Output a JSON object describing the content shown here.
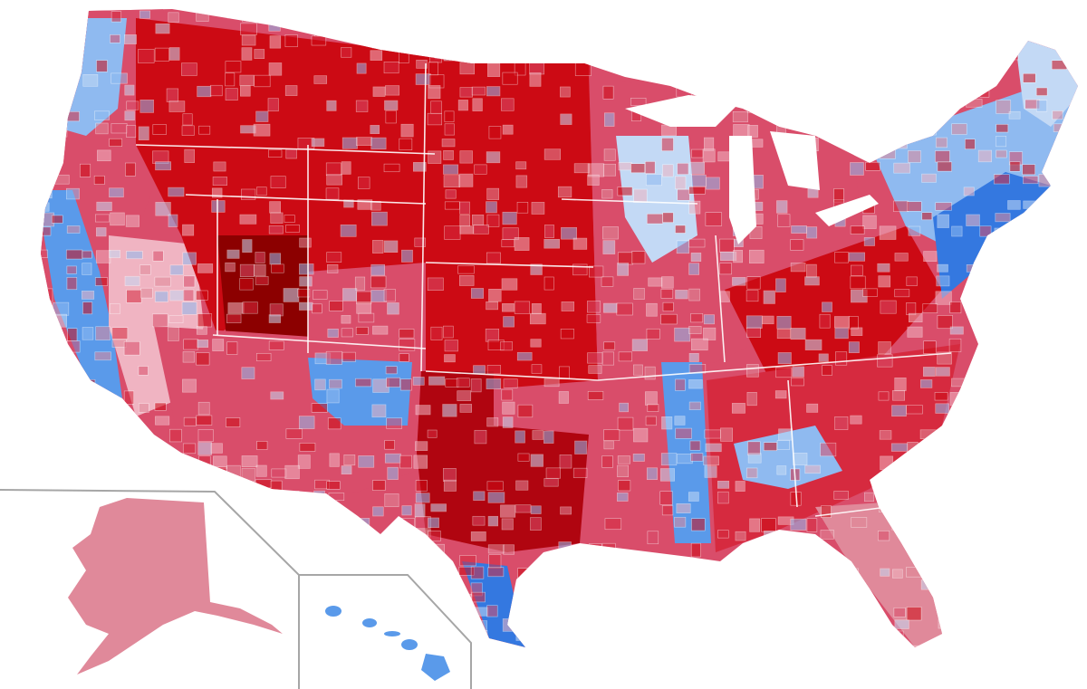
{
  "map": {
    "legend_colors": {
      "r_very_strong": "#8c0000",
      "r_strong": "#cc0a14",
      "r_solid": "#d62a3f",
      "r_medium": "#d94d6a",
      "r_lean": "#e0899a",
      "r_tilt": "#f0b4c2",
      "d_tilt": "#c3d9f5",
      "d_lean": "#8fbaf0",
      "d_medium": "#5a9aea",
      "d_solid": "#3478e0",
      "d_strong": "#1a5ccc"
    },
    "regions": [
      {
        "id": "west-coast",
        "fill": "#d94d6a"
      },
      {
        "id": "pacific-northwest-coast",
        "fill": "#8fbaf0"
      },
      {
        "id": "california-coast",
        "fill": "#5a9aea"
      },
      {
        "id": "nevada",
        "fill": "#f0b4c2"
      },
      {
        "id": "mountain-west",
        "fill": "#cc0a14"
      },
      {
        "id": "utah-core",
        "fill": "#8c0000"
      },
      {
        "id": "southwest",
        "fill": "#d94d6a"
      },
      {
        "id": "new-mexico-blue",
        "fill": "#5a9aea"
      },
      {
        "id": "great-plains",
        "fill": "#cc0a14"
      },
      {
        "id": "texas-panhandle",
        "fill": "#b00510"
      },
      {
        "id": "texas-south-border",
        "fill": "#3478e0"
      },
      {
        "id": "midwest",
        "fill": "#d94d6a"
      },
      {
        "id": "upper-midwest-blue",
        "fill": "#c3d9f5"
      },
      {
        "id": "mississippi-delta",
        "fill": "#5a9aea"
      },
      {
        "id": "appalachia",
        "fill": "#cc0a14"
      },
      {
        "id": "southeast",
        "fill": "#d62a3f"
      },
      {
        "id": "black-belt",
        "fill": "#8fbaf0"
      },
      {
        "id": "florida",
        "fill": "#e0899a"
      },
      {
        "id": "northeast",
        "fill": "#8fbaf0"
      },
      {
        "id": "northeast-corridor",
        "fill": "#3478e0"
      },
      {
        "id": "maine",
        "fill": "#c3d9f5"
      }
    ],
    "insets": {
      "alaska_fill": "#e0899a",
      "hawaii_fill": "#5a9aea",
      "border_color": "#a6a6a6"
    }
  }
}
